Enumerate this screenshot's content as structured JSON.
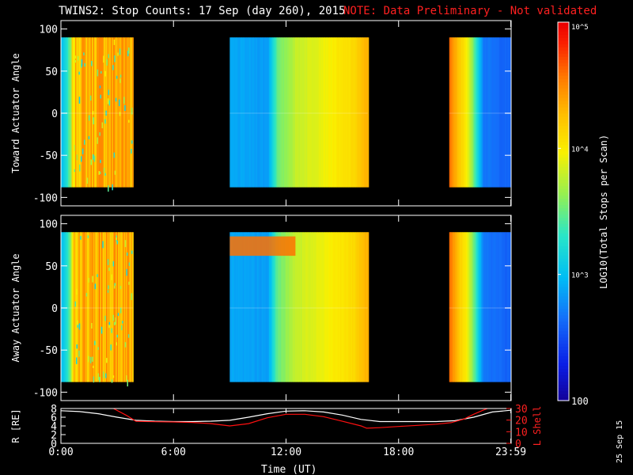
{
  "header": {
    "title": "TWINS2: Stop Counts: 17 Sep (day 260), 2015",
    "note": "NOTE: Data Preliminary - Not validated",
    "note_color": "#ff2020"
  },
  "footer": {
    "xlabel": "Time (UT)",
    "stamp": "25 Sep 15"
  },
  "colorbar": {
    "label": "LOG10(Total Stops per Scan)",
    "range": [
      100,
      100000
    ],
    "ticks": [
      {
        "value": 100000,
        "label": "10^5"
      },
      {
        "value": 10000,
        "label": "10^4"
      },
      {
        "value": 1000,
        "label": "10^3"
      },
      {
        "value": 100,
        "label": "100"
      }
    ]
  },
  "chart_data": [
    {
      "type": "heatmap",
      "ylabel": "Toward Actuator Angle",
      "ylim": [
        -110,
        110
      ],
      "yticks": [
        100,
        50,
        0,
        -50,
        -100
      ],
      "angle_range": [
        -88,
        90
      ],
      "xlim": [
        0,
        24
      ],
      "xticks": [
        {
          "v": 0,
          "l": "0:00"
        },
        {
          "v": 6,
          "l": "6:00"
        },
        {
          "v": 12,
          "l": "12:00"
        },
        {
          "v": 18,
          "l": "18:00"
        },
        {
          "v": 23.98,
          "l": "23:59"
        }
      ],
      "segments": [
        {
          "start_hr": 0.0,
          "end_hr": 3.85,
          "profile": [
            [
              0.0,
              3.0
            ],
            [
              0.25,
              3.2
            ],
            [
              0.5,
              3.6
            ],
            [
              0.6,
              4.1
            ],
            [
              0.85,
              4.3
            ],
            [
              1.5,
              4.35
            ],
            [
              3.85,
              4.4
            ]
          ]
        },
        {
          "start_hr": 9.0,
          "end_hr": 16.35,
          "profile": [
            [
              9.0,
              2.9
            ],
            [
              11.0,
              2.85
            ],
            [
              11.5,
              3.5
            ],
            [
              12.5,
              3.8
            ],
            [
              14.0,
              3.95
            ],
            [
              15.5,
              4.1
            ],
            [
              16.35,
              4.35
            ]
          ]
        },
        {
          "start_hr": 20.7,
          "end_hr": 23.98,
          "profile": [
            [
              20.7,
              4.6
            ],
            [
              21.2,
              4.2
            ],
            [
              21.6,
              4.0
            ],
            [
              22.0,
              3.5
            ],
            [
              22.5,
              2.7
            ],
            [
              23.98,
              2.6
            ]
          ]
        }
      ]
    },
    {
      "type": "heatmap",
      "ylabel": "Away Actuator Angle",
      "ylim": [
        -110,
        110
      ],
      "yticks": [
        100,
        50,
        0,
        -50,
        -100
      ],
      "angle_range": [
        -88,
        90
      ],
      "xlim": [
        0,
        24
      ],
      "xticks": [
        {
          "v": 0,
          "l": "0:00"
        },
        {
          "v": 6,
          "l": "6:00"
        },
        {
          "v": 12,
          "l": "12:00"
        },
        {
          "v": 18,
          "l": "18:00"
        },
        {
          "v": 23.98,
          "l": "23:59"
        }
      ],
      "segments": [
        {
          "start_hr": 0.0,
          "end_hr": 3.85,
          "profile": [
            [
              0.0,
              3.0
            ],
            [
              0.25,
              3.2
            ],
            [
              0.5,
              3.6
            ],
            [
              0.6,
              4.1
            ],
            [
              0.85,
              4.3
            ],
            [
              1.5,
              4.35
            ],
            [
              3.85,
              4.4
            ]
          ]
        },
        {
          "start_hr": 9.0,
          "end_hr": 16.35,
          "profile": [
            [
              9.0,
              2.9
            ],
            [
              11.0,
              2.85
            ],
            [
              11.5,
              3.5
            ],
            [
              12.5,
              3.8
            ],
            [
              14.0,
              3.95
            ],
            [
              15.5,
              4.1
            ],
            [
              16.35,
              4.35
            ]
          ]
        },
        {
          "start_hr": 20.7,
          "end_hr": 23.98,
          "profile": [
            [
              20.7,
              4.6
            ],
            [
              21.2,
              4.2
            ],
            [
              21.6,
              4.0
            ],
            [
              22.0,
              3.5
            ],
            [
              22.5,
              2.7
            ],
            [
              23.98,
              2.6
            ]
          ]
        }
      ],
      "high_band": {
        "angle_range": [
          62,
          85
        ],
        "time_range": [
          9.0,
          12.5
        ],
        "log_value": 4.6
      }
    },
    {
      "type": "line",
      "ylabel": "R [RE]",
      "ylim": [
        0,
        8
      ],
      "yticks": [
        0,
        2,
        4,
        6,
        8
      ],
      "y2label": "L Shell",
      "y2lim": [
        0,
        30
      ],
      "y2ticks": [
        0,
        10,
        20,
        30
      ],
      "xlim": [
        0,
        24
      ],
      "series": [
        {
          "axis": "left",
          "color": "#ffffff",
          "x": [
            0,
            1,
            2,
            3,
            4,
            5,
            6,
            7,
            8,
            9,
            10,
            11,
            12,
            13,
            14,
            15,
            16,
            17,
            18,
            19,
            20,
            21,
            22,
            23,
            23.98
          ],
          "y": [
            7.5,
            7.3,
            6.8,
            6.0,
            5.3,
            5.1,
            5.0,
            5.0,
            5.1,
            5.3,
            6.0,
            6.8,
            7.4,
            7.5,
            7.2,
            6.5,
            5.5,
            5.0,
            5.0,
            5.0,
            5.0,
            5.2,
            6.0,
            7.2,
            7.6
          ]
        },
        {
          "axis": "right",
          "color": "#ff1010",
          "x": [
            2.8,
            3.5,
            4.0,
            5.0,
            6.0,
            7.0,
            8.0,
            9.0,
            10.0,
            11.0,
            12.0,
            13.0,
            14.0,
            15.0,
            16.0,
            16.3,
            17.0,
            18.0,
            19.0,
            20.0,
            20.8,
            21.5,
            22.0,
            22.5,
            22.9
          ],
          "y": [
            30,
            24,
            19,
            18.6,
            18.4,
            18,
            17,
            15,
            17,
            22,
            25,
            25,
            23,
            19,
            15,
            13,
            13.5,
            14.5,
            15.5,
            16.5,
            17.8,
            21,
            25,
            28.5,
            31
          ]
        }
      ]
    }
  ]
}
